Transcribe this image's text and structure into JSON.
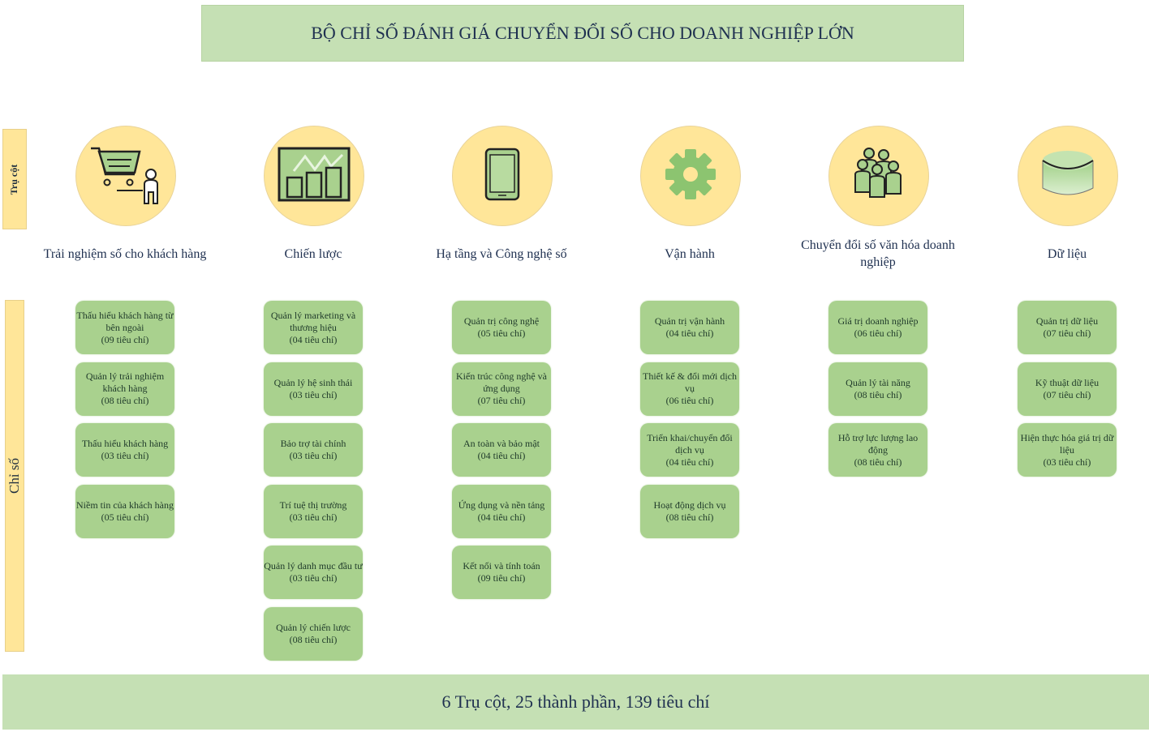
{
  "title": "BỘ CHỈ SỐ ĐÁNH GIÁ CHUYỂN ĐỔI SỐ CHO DOANH NGHIỆP LỚN",
  "side_labels": {
    "pillar": "Trụ cột",
    "index": "Chỉ số"
  },
  "colors": {
    "header_bg": "#c5e0b4",
    "circle": "#ffe699",
    "box": "#a9d18e"
  },
  "pillars": [
    {
      "label": "Trải nghiệm số cho khách hàng",
      "icon": "shopping-cart-customer-icon",
      "items": [
        {
          "name": "Thấu hiểu khách hàng từ bên ngoài",
          "count": "(09 tiêu chí)"
        },
        {
          "name": "Quản lý trải nghiệm khách hàng",
          "count": "(08 tiêu chí)"
        },
        {
          "name": "Thấu hiểu khách hàng",
          "count": "(03 tiêu chí)"
        },
        {
          "name": "Niềm tin của khách hàng",
          "count": "(05 tiêu chí)"
        }
      ]
    },
    {
      "label": "Chiến lược",
      "icon": "growth-chart-icon",
      "items": [
        {
          "name": "Quản lý marketing và thương hiệu",
          "count": "(04 tiêu chí)"
        },
        {
          "name": "Quản lý hệ sinh thái",
          "count": "(03 tiêu chí)"
        },
        {
          "name": "Bảo trợ tài chính",
          "count": "(03 tiêu chí)"
        },
        {
          "name": "Trí tuệ thị trường",
          "count": "(03 tiêu chí)"
        },
        {
          "name": "Quản lý danh mục đầu tư",
          "count": "(03 tiêu chí)"
        },
        {
          "name": "Quản lý chiến lược",
          "count": "(08 tiêu chí)"
        }
      ]
    },
    {
      "label": "Hạ tầng và Công nghệ số",
      "icon": "tablet-icon",
      "items": [
        {
          "name": "Quản trị công nghệ",
          "count": "(05 tiêu chí)"
        },
        {
          "name": "Kiến trúc công nghệ và ứng dụng",
          "count": "(07 tiêu chí)"
        },
        {
          "name": "An toàn và bảo mật",
          "count": "(04 tiêu chí)"
        },
        {
          "name": "Ứng dụng và nền tảng",
          "count": "(04 tiêu chí)"
        },
        {
          "name": "Kết nối và tính toán",
          "count": "(09 tiêu chí)"
        }
      ]
    },
    {
      "label": "Vận hành",
      "icon": "gear-icon",
      "items": [
        {
          "name": "Quản trị vận hành",
          "count": "(04 tiêu chí)"
        },
        {
          "name": "Thiết kế & đổi mới dịch vụ",
          "count": "(06 tiêu chí)"
        },
        {
          "name": "Triển khai/chuyển đổi dịch vụ",
          "count": "(04 tiêu chí)"
        },
        {
          "name": "Hoạt động dịch vụ",
          "count": "(08 tiêu chí)"
        }
      ]
    },
    {
      "label": "Chuyển đổi số văn hóa doanh nghiệp",
      "icon": "people-group-icon",
      "items": [
        {
          "name": "Giá trị doanh nghiệp",
          "count": "(06 tiêu chí)"
        },
        {
          "name": "Quản lý tài năng",
          "count": "(08 tiêu chí)"
        },
        {
          "name": "Hỗ trợ lực lượng lao động",
          "count": "(08 tiêu chí)"
        }
      ]
    },
    {
      "label": "Dữ liệu",
      "icon": "database-icon",
      "items": [
        {
          "name": "Quản trị dữ liệu",
          "count": "(07 tiêu chí)"
        },
        {
          "name": "Kỹ thuật dữ liệu",
          "count": "(07 tiêu chí)"
        },
        {
          "name": "Hiện thực hóa giá trị dữ liệu",
          "count": "(03 tiêu chí)"
        }
      ]
    }
  ],
  "footer": "6 Trụ cột, 25 thành phần, 139 tiêu chí"
}
